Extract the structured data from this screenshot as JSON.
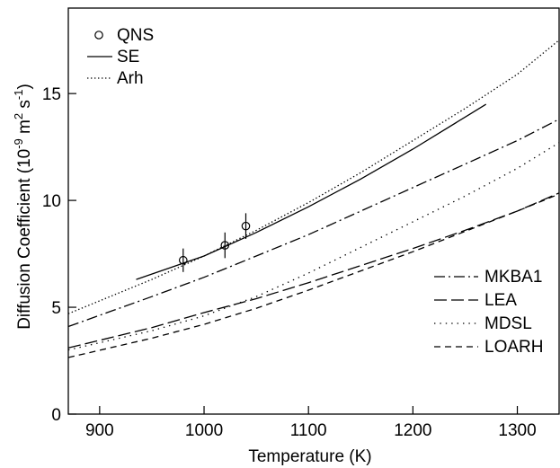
{
  "chart_data": {
    "type": "line",
    "xlabel": "Temperature  (K)",
    "ylabel_main": "Diffusion Coefficient  (10",
    "ylabel_exp1": "-9",
    "ylabel_mid": " m",
    "ylabel_exp2": "2",
    "ylabel_mid2": " s",
    "ylabel_exp3": "-1",
    "ylabel_end": ")",
    "xlim": [
      870,
      1340
    ],
    "ylim": [
      0,
      19
    ],
    "x_ticks": [
      900,
      1000,
      1100,
      1200,
      1300
    ],
    "x_tick_labels": [
      "900",
      "1000",
      "1100",
      "1200",
      "1300"
    ],
    "y_ticks": [
      0,
      5,
      10,
      15
    ],
    "y_tick_labels": [
      "0",
      "5",
      "10",
      "15"
    ],
    "grid": false,
    "legend_top": [
      "QNS",
      "SE",
      "Arh"
    ],
    "legend_bottom": [
      "MKBA1",
      "LEA",
      "MDSL",
      "LOARH"
    ],
    "series": [
      {
        "name": "QNS",
        "style": "points",
        "x": [
          980,
          1020,
          1040
        ],
        "y": [
          7.2,
          7.9,
          8.8
        ],
        "yerr": [
          0.55,
          0.6,
          0.6
        ]
      },
      {
        "name": "SE",
        "style": "solid",
        "x": [
          935,
          1000,
          1050,
          1100,
          1150,
          1200,
          1270
        ],
        "y": [
          6.3,
          7.4,
          8.5,
          9.7,
          11.0,
          12.4,
          14.5
        ]
      },
      {
        "name": "Arh",
        "style": "dotted",
        "x": [
          870,
          950,
          1000,
          1050,
          1100,
          1150,
          1200,
          1250,
          1300,
          1340
        ],
        "y": [
          4.7,
          6.3,
          7.4,
          8.6,
          9.9,
          11.3,
          12.8,
          14.3,
          15.9,
          17.5
        ]
      },
      {
        "name": "MKBA1",
        "style": "dashdot",
        "x": [
          870,
          950,
          1000,
          1050,
          1100,
          1150,
          1200,
          1250,
          1300,
          1340
        ],
        "y": [
          4.1,
          5.5,
          6.4,
          7.4,
          8.4,
          9.5,
          10.6,
          11.7,
          12.8,
          13.8
        ]
      },
      {
        "name": "LEA",
        "style": "longdash",
        "x": [
          870,
          950,
          1000,
          1050,
          1100,
          1150,
          1200,
          1250,
          1300,
          1340
        ],
        "y": [
          3.1,
          4.05,
          4.75,
          5.4,
          6.15,
          6.95,
          7.75,
          8.6,
          9.5,
          10.35
        ]
      },
      {
        "name": "MDSL",
        "style": "sparsedot",
        "x": [
          870,
          950,
          1000,
          1050,
          1100,
          1150,
          1200,
          1250,
          1300,
          1340
        ],
        "y": [
          3.0,
          3.9,
          4.6,
          5.5,
          6.6,
          7.8,
          9.0,
          10.2,
          11.5,
          12.7
        ]
      },
      {
        "name": "LOARH",
        "style": "shortdash",
        "x": [
          870,
          950,
          1000,
          1050,
          1100,
          1150,
          1200,
          1250,
          1300,
          1340
        ],
        "y": [
          2.65,
          3.55,
          4.2,
          4.95,
          5.8,
          6.7,
          7.6,
          8.55,
          9.5,
          10.3
        ]
      }
    ]
  },
  "colors": {
    "ink": "#000000",
    "background": "#ffffff"
  }
}
